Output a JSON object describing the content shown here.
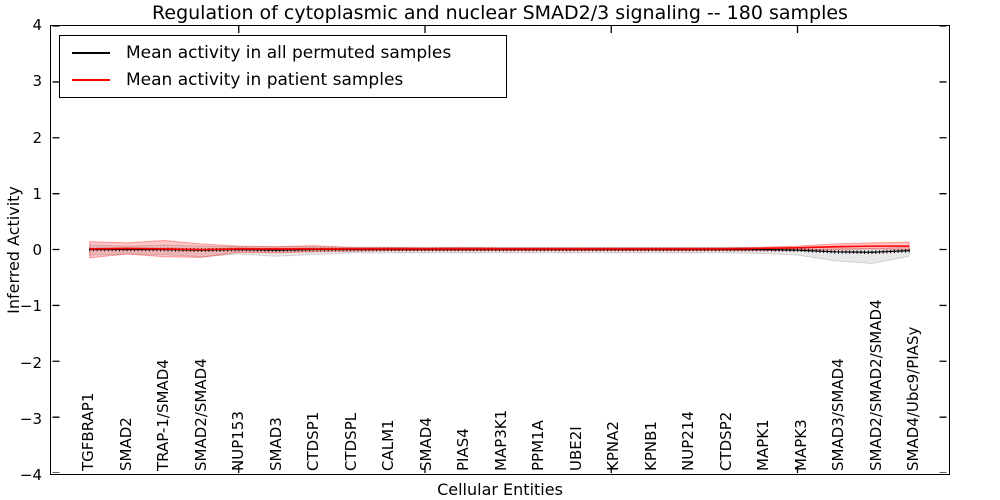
{
  "chart_data": {
    "type": "line",
    "title": "Regulation of cytoplasmic and nuclear SMAD2/3 signaling -- 180 samples",
    "xlabel": "Cellular Entities",
    "ylabel": "Inferred Activity",
    "ylim": [
      -4,
      4
    ],
    "yticks": [
      4,
      3,
      2,
      1,
      0,
      -1,
      -2,
      -3,
      -4
    ],
    "ytick_labels": [
      "4",
      "3",
      "2",
      "1",
      "0",
      "−1",
      "−2",
      "−3",
      "−4"
    ],
    "x_major_tick_indices": [
      4,
      9,
      14,
      19
    ],
    "grid": false,
    "legend_position": "upper left",
    "background_color": "#ffffff",
    "frame_color": "#000000",
    "categories": [
      "TGFBRAP1",
      "SMAD2",
      "TRAP-1/SMAD4",
      "SMAD2/SMAD4",
      "NUP153",
      "SMAD3",
      "CTDSP1",
      "CTDSPL",
      "CALM1",
      "SMAD4",
      "PIAS4",
      "MAP3K1",
      "PPM1A",
      "UBE2I",
      "KPNA2",
      "KPNB1",
      "NUP214",
      "CTDSP2",
      "MAPK1",
      "MAPK3",
      "SMAD3/SMAD4",
      "SMAD2/SMAD2/SMAD4",
      "SMAD4/Ubc9/PIASy"
    ],
    "series": [
      {
        "name": "Mean activity in all permuted samples",
        "color": "#000000",
        "marker": "vertical-dash",
        "markers_per_interval": 10,
        "values": [
          0,
          0,
          0,
          -0.01,
          0,
          -0.01,
          0,
          0,
          0,
          0,
          0,
          0,
          0,
          0,
          0,
          0,
          0,
          0,
          0,
          -0.01,
          -0.04,
          -0.05,
          -0.02
        ]
      },
      {
        "name": "Mean activity in patient samples",
        "color": "#ff0000",
        "marker": "none",
        "values": [
          0.01,
          0.02,
          0.01,
          0,
          0.01,
          0.01,
          0.01,
          0.01,
          0.01,
          0.01,
          0.01,
          0.01,
          0.01,
          0.01,
          0.01,
          0.01,
          0.01,
          0.01,
          0.02,
          0.03,
          0.05,
          0.06,
          0.06
        ]
      }
    ],
    "bands": [
      {
        "name": "std-band-permuted-samples",
        "fill": "rgba(0,0,0,0.09)",
        "stroke": "rgba(0,0,0,0.14)",
        "upper": [
          0.08,
          0.06,
          0.08,
          0.06,
          0.05,
          0.05,
          0.05,
          0.04,
          0.04,
          0.04,
          0.04,
          0.04,
          0.04,
          0.04,
          0.04,
          0.04,
          0.04,
          0.04,
          0.04,
          0.04,
          0.03,
          0.02,
          0.04
        ],
        "lower": [
          -0.1,
          -0.08,
          -0.09,
          -0.13,
          -0.08,
          -0.12,
          -0.09,
          -0.06,
          -0.06,
          -0.06,
          -0.06,
          -0.06,
          -0.06,
          -0.06,
          -0.06,
          -0.06,
          -0.06,
          -0.06,
          -0.07,
          -0.1,
          -0.2,
          -0.25,
          -0.12
        ]
      },
      {
        "name": "std-band-patient-samples",
        "fill": "rgba(255,0,0,0.22)",
        "stroke": "rgba(255,0,0,0.35)",
        "upper": [
          0.14,
          0.12,
          0.16,
          0.1,
          0.06,
          0.05,
          0.07,
          0.04,
          0.04,
          0.03,
          0.04,
          0.03,
          0.03,
          0.03,
          0.03,
          0.03,
          0.03,
          0.03,
          0.04,
          0.06,
          0.1,
          0.12,
          0.13
        ],
        "lower": [
          -0.15,
          -0.08,
          -0.13,
          -0.14,
          -0.05,
          -0.06,
          -0.04,
          -0.03,
          -0.02,
          -0.02,
          -0.02,
          -0.02,
          -0.02,
          -0.02,
          -0.02,
          -0.02,
          -0.02,
          -0.02,
          -0.02,
          -0.01,
          0.0,
          0.01,
          0.0
        ]
      }
    ]
  }
}
